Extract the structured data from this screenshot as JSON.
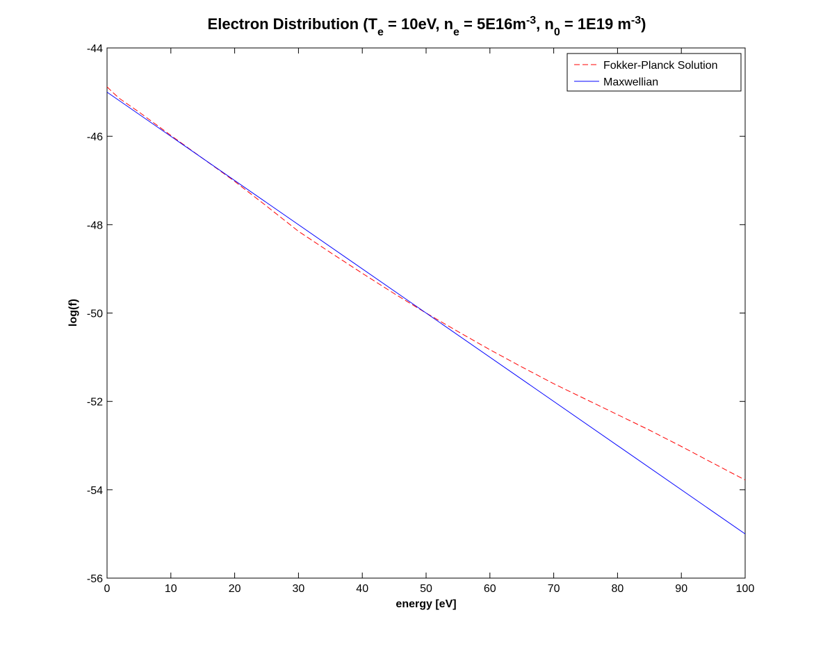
{
  "chart_data": {
    "type": "line",
    "title": {
      "pre_T": "Electron Distribution (T",
      "sub_e1": "e",
      "mid1": " = 10eV, n",
      "sub_e2": "e",
      "mid2": " = 5E16m",
      "sup1": "-3",
      "mid3": ", n",
      "sub_0": "0",
      "mid4": " = 1E19 m",
      "sup2": "-3",
      "end": ")"
    },
    "xlabel": "energy [eV]",
    "ylabel": "log(f)",
    "xlim": [
      0,
      100
    ],
    "ylim": [
      -56,
      -44
    ],
    "xticks": [
      0,
      10,
      20,
      30,
      40,
      50,
      60,
      70,
      80,
      90,
      100
    ],
    "yticks": [
      -44,
      -46,
      -48,
      -50,
      -52,
      -54,
      -56
    ],
    "grid": false,
    "legend_position": "top-right",
    "series": [
      {
        "name": "Fokker-Planck Solution",
        "color": "#ff0000",
        "style": "dashed",
        "x": [
          0,
          1,
          2,
          5,
          10,
          15,
          20,
          25,
          30,
          35,
          40,
          45,
          50,
          55,
          60,
          65,
          70,
          75,
          80,
          85,
          90,
          95,
          100
        ],
        "y": [
          -44.88,
          -45.02,
          -45.15,
          -45.45,
          -45.98,
          -46.5,
          -47.02,
          -47.58,
          -48.15,
          -48.63,
          -49.1,
          -49.56,
          -50.0,
          -50.42,
          -50.83,
          -51.22,
          -51.6,
          -51.95,
          -52.3,
          -52.65,
          -53.02,
          -53.4,
          -53.78
        ]
      },
      {
        "name": "Maxwellian",
        "color": "#0000ff",
        "style": "solid",
        "x": [
          0,
          100
        ],
        "y": [
          -45.0,
          -55.0
        ]
      }
    ]
  }
}
